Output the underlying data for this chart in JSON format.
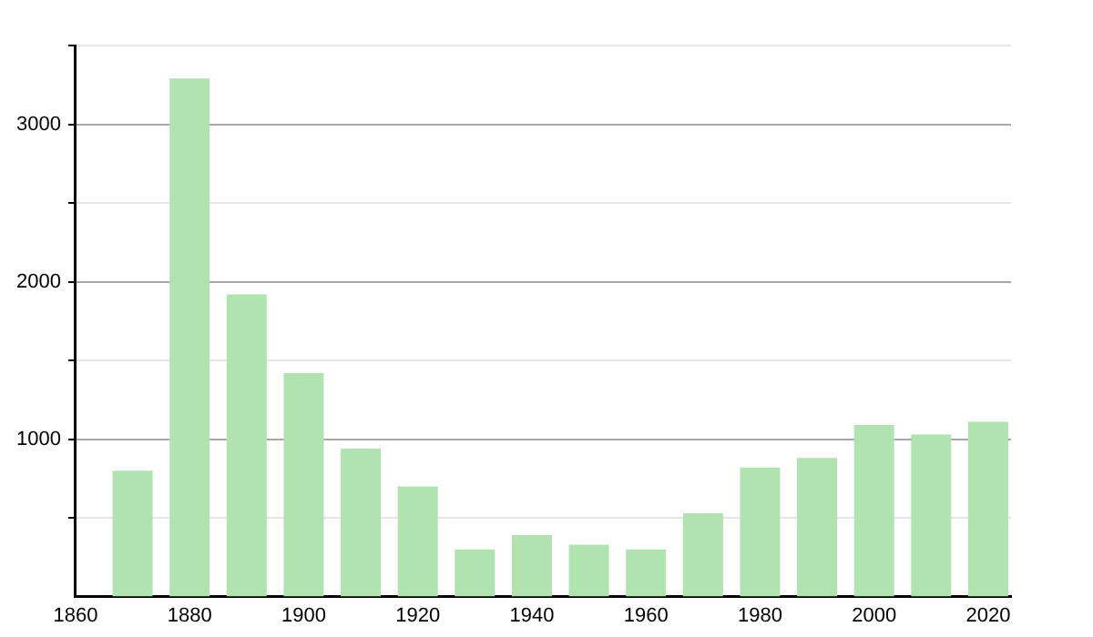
{
  "chart_data": {
    "type": "bar",
    "x": [
      1870,
      1880,
      1890,
      1900,
      1910,
      1920,
      1930,
      1940,
      1950,
      1960,
      1970,
      1980,
      1990,
      2000,
      2010,
      2020
    ],
    "values": [
      800,
      3290,
      1920,
      1420,
      940,
      700,
      300,
      390,
      330,
      300,
      530,
      820,
      880,
      1090,
      1030,
      1110
    ],
    "color": "#b0e3b0",
    "xlim": [
      1860,
      2024
    ],
    "xticks": [
      1860,
      1880,
      1900,
      1920,
      1940,
      1960,
      1980,
      2000,
      2020
    ],
    "ylim": [
      0,
      3500
    ],
    "yticks": [
      {
        "value": 500,
        "label": null
      },
      1000,
      {
        "value": 1500,
        "label": null
      },
      2000,
      {
        "value": 2500,
        "label": null
      },
      3000,
      {
        "value": 3500,
        "label": null
      }
    ],
    "grid": "y"
  }
}
